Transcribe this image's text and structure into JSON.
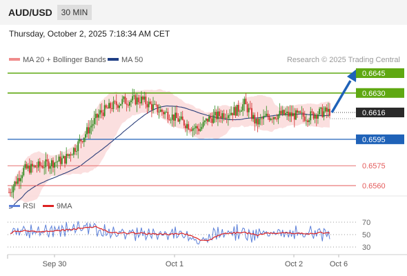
{
  "header": {
    "symbol": "AUD/USD",
    "interval": "30 MIN",
    "timestamp": "Thursday, October 2, 2025 7:18:34 AM CET"
  },
  "legend": {
    "ma20": "MA 20 + Bollinger Bands",
    "ma50": "MA 50",
    "credit": "Research © 2025 Trading Central"
  },
  "colors": {
    "green": "#5fa812",
    "blue": "#1f62b8",
    "red": "#e45a5a",
    "dark": "#2a2a2a",
    "candle_up": "#2b8a1a",
    "candle_down": "#d22c2c",
    "band": "#fbdcdc",
    "rsi": "#5b7fd8",
    "rsi_ma": "#dd2222"
  },
  "chart_data": [
    {
      "type": "candlestick",
      "ylim": [
        0.6552,
        0.665
      ],
      "x_ticks": [
        "Sep 30",
        "Oct 1",
        "Oct 2",
        "Oct 6"
      ],
      "current_price": "0.6616",
      "levels": [
        {
          "value": 0.6645,
          "label": "0.6645",
          "kind": "resistance"
        },
        {
          "value": 0.663,
          "label": "0.6630",
          "kind": "resistance"
        },
        {
          "value": 0.6595,
          "label": "0.6595",
          "kind": "pivot"
        },
        {
          "value": 0.6575,
          "label": "0.6575",
          "kind": "support"
        },
        {
          "value": 0.656,
          "label": "0.6560",
          "kind": "support"
        }
      ],
      "series": [
        {
          "name": "MA 20 + Bollinger Bands"
        },
        {
          "name": "MA 50"
        }
      ],
      "forecast_target": 0.6645
    },
    {
      "type": "line",
      "name": "rsi-panel",
      "ylim": [
        25,
        75
      ],
      "y_ticks": [
        "70",
        "50",
        "30"
      ],
      "series": [
        {
          "name": "RSI"
        },
        {
          "name": "9MA"
        }
      ]
    }
  ]
}
